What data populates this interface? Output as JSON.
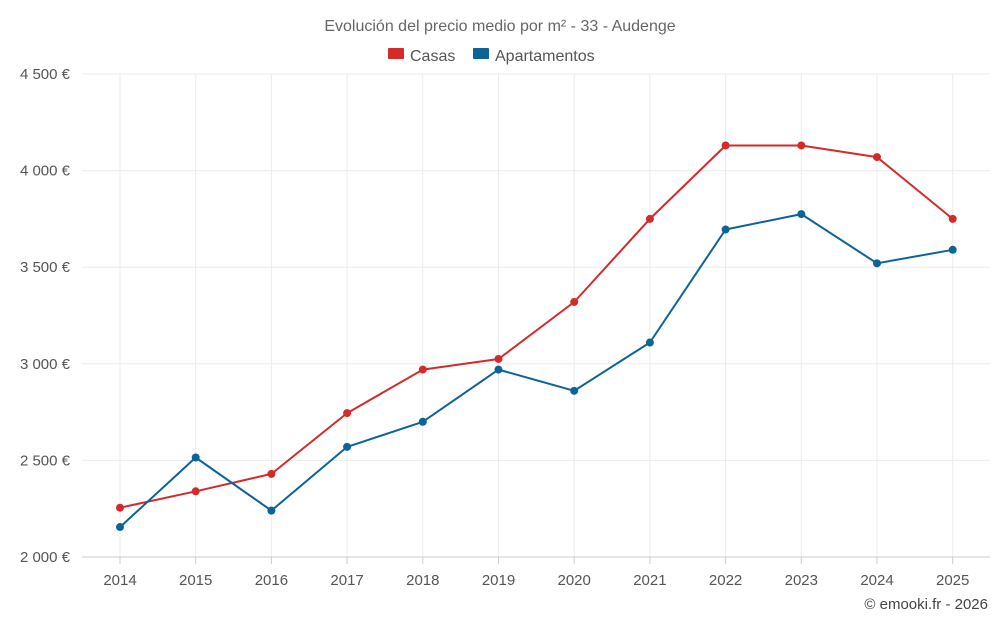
{
  "chart_data": {
    "type": "line",
    "title": "Evolución del precio medio por m² - 33 - Audenge",
    "categories": [
      "2014",
      "2015",
      "2016",
      "2017",
      "2018",
      "2019",
      "2020",
      "2021",
      "2022",
      "2023",
      "2024",
      "2025"
    ],
    "series": [
      {
        "name": "Casas",
        "color": "#d42a2a",
        "values": [
          2255,
          2340,
          2430,
          2745,
          2970,
          3025,
          3320,
          3750,
          4130,
          4130,
          4070,
          3750
        ]
      },
      {
        "name": "Apartamentos",
        "color": "#0b6498",
        "values": [
          2155,
          2515,
          2240,
          2570,
          2700,
          2970,
          2860,
          3110,
          3695,
          3775,
          3520,
          3590
        ]
      }
    ],
    "ylim": [
      2000,
      4500
    ],
    "yticks": [
      2000,
      2500,
      3000,
      3500,
      4000,
      4500
    ],
    "ytick_labels": [
      "2 000 €",
      "2 500 €",
      "3 000 €",
      "3 500 €",
      "4 000 €",
      "4 500 €"
    ],
    "grid": true,
    "legend_position": "top-center",
    "xlabel": "",
    "ylabel": ""
  },
  "credit": "© emooki.fr - 2026"
}
